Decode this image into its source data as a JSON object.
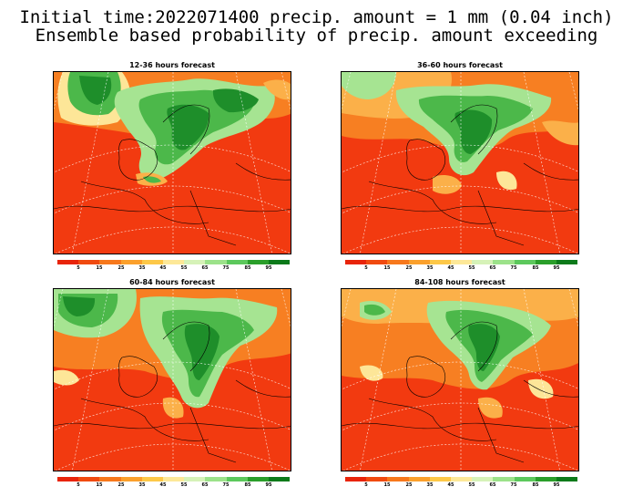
{
  "title": {
    "line1": "Initial time:2022071400 precip. amount = 1 mm (0.04 inch)",
    "line2": "Ensemble based probability of precip. amount exceeding"
  },
  "panels": [
    {
      "title": "12-36 hours forecast"
    },
    {
      "title": "36-60 hours forecast"
    },
    {
      "title": "60-84 hours forecast"
    },
    {
      "title": "84-108 hours forecast"
    }
  ],
  "legend": {
    "labels": [
      "5",
      "15",
      "25",
      "35",
      "45",
      "55",
      "65",
      "75",
      "85",
      "95"
    ],
    "colors": [
      "#e8240a",
      "#f04a10",
      "#f7781c",
      "#fba02c",
      "#fdc848",
      "#fde898",
      "#d6f2b8",
      "#9ce28a",
      "#5cc85c",
      "#2a9e2a",
      "#0c7a1a"
    ]
  },
  "colors": {
    "low": "#f23a10",
    "orange": "#f77f22",
    "light_orange": "#fbb049",
    "yellow": "#fde698",
    "light_green": "#a6e492",
    "green": "#4cb84a",
    "dark_green": "#1e8e2a"
  }
}
